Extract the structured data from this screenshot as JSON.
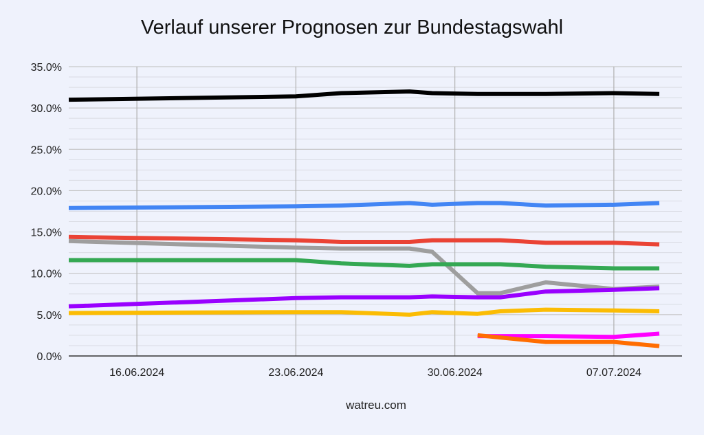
{
  "title": "Verlauf unserer Prognosen zur Bundestagswahl",
  "footer": "watreu.com",
  "chart_data": {
    "type": "line",
    "title": "Verlauf unserer Prognosen zur Bundestagswahl",
    "xlabel": "",
    "ylabel": "",
    "x_range": [
      "13.06.2024",
      "10.07.2024"
    ],
    "ylim": [
      0,
      35
    ],
    "y_ticks": [
      "0.0%",
      "5.0%",
      "10.0%",
      "15.0%",
      "20.0%",
      "25.0%",
      "30.0%",
      "35.0%"
    ],
    "x_ticks": [
      "16.06.2024",
      "23.06.2024",
      "30.06.2024",
      "07.07.2024"
    ],
    "legend": "none",
    "grid": true,
    "series": [
      {
        "name": "black",
        "color": "#000000",
        "points": [
          [
            "2024-06-13",
            31.0
          ],
          [
            "2024-06-23",
            31.4
          ],
          [
            "2024-06-25",
            31.8
          ],
          [
            "2024-06-28",
            32.0
          ],
          [
            "2024-06-29",
            31.8
          ],
          [
            "2024-07-01",
            31.7
          ],
          [
            "2024-07-04",
            31.7
          ],
          [
            "2024-07-07",
            31.8
          ],
          [
            "2024-07-09",
            31.7
          ]
        ]
      },
      {
        "name": "blue",
        "color": "#4285f4",
        "points": [
          [
            "2024-06-13",
            17.9
          ],
          [
            "2024-06-23",
            18.1
          ],
          [
            "2024-06-25",
            18.2
          ],
          [
            "2024-06-28",
            18.5
          ],
          [
            "2024-06-29",
            18.3
          ],
          [
            "2024-07-01",
            18.5
          ],
          [
            "2024-07-02",
            18.5
          ],
          [
            "2024-07-04",
            18.2
          ],
          [
            "2024-07-07",
            18.3
          ],
          [
            "2024-07-09",
            18.5
          ]
        ]
      },
      {
        "name": "red",
        "color": "#ea4335",
        "points": [
          [
            "2024-06-13",
            14.4
          ],
          [
            "2024-06-23",
            14.0
          ],
          [
            "2024-06-25",
            13.8
          ],
          [
            "2024-06-28",
            13.8
          ],
          [
            "2024-06-29",
            14.0
          ],
          [
            "2024-07-01",
            14.0
          ],
          [
            "2024-07-02",
            14.0
          ],
          [
            "2024-07-04",
            13.7
          ],
          [
            "2024-07-07",
            13.7
          ],
          [
            "2024-07-09",
            13.5
          ]
        ]
      },
      {
        "name": "grey",
        "color": "#9e9e9e",
        "points": [
          [
            "2024-06-13",
            13.9
          ],
          [
            "2024-06-23",
            13.1
          ],
          [
            "2024-06-25",
            13.0
          ],
          [
            "2024-06-28",
            13.0
          ],
          [
            "2024-06-29",
            12.6
          ],
          [
            "2024-07-01",
            7.6
          ],
          [
            "2024-07-02",
            7.6
          ],
          [
            "2024-07-04",
            8.9
          ],
          [
            "2024-07-07",
            8.1
          ],
          [
            "2024-07-09",
            8.4
          ]
        ]
      },
      {
        "name": "green",
        "color": "#34a853",
        "points": [
          [
            "2024-06-13",
            11.6
          ],
          [
            "2024-06-23",
            11.6
          ],
          [
            "2024-06-25",
            11.2
          ],
          [
            "2024-06-28",
            10.9
          ],
          [
            "2024-06-29",
            11.1
          ],
          [
            "2024-07-01",
            11.1
          ],
          [
            "2024-07-02",
            11.1
          ],
          [
            "2024-07-04",
            10.8
          ],
          [
            "2024-07-07",
            10.6
          ],
          [
            "2024-07-09",
            10.6
          ]
        ]
      },
      {
        "name": "purple",
        "color": "#9900ff",
        "points": [
          [
            "2024-06-13",
            6.0
          ],
          [
            "2024-06-23",
            7.0
          ],
          [
            "2024-06-25",
            7.1
          ],
          [
            "2024-06-28",
            7.1
          ],
          [
            "2024-06-29",
            7.2
          ],
          [
            "2024-07-01",
            7.1
          ],
          [
            "2024-07-02",
            7.1
          ],
          [
            "2024-07-04",
            7.8
          ],
          [
            "2024-07-07",
            8.0
          ],
          [
            "2024-07-09",
            8.2
          ]
        ]
      },
      {
        "name": "yellow",
        "color": "#fbbc04",
        "points": [
          [
            "2024-06-13",
            5.2
          ],
          [
            "2024-06-23",
            5.3
          ],
          [
            "2024-06-25",
            5.3
          ],
          [
            "2024-06-28",
            5.0
          ],
          [
            "2024-06-29",
            5.3
          ],
          [
            "2024-07-01",
            5.1
          ],
          [
            "2024-07-02",
            5.4
          ],
          [
            "2024-07-04",
            5.6
          ],
          [
            "2024-07-07",
            5.5
          ],
          [
            "2024-07-09",
            5.4
          ]
        ]
      },
      {
        "name": "magenta",
        "color": "#ff00ff",
        "points": [
          [
            "2024-07-01",
            2.4
          ],
          [
            "2024-07-04",
            2.4
          ],
          [
            "2024-07-07",
            2.3
          ],
          [
            "2024-07-09",
            2.7
          ]
        ]
      },
      {
        "name": "orange",
        "color": "#ff6d01",
        "points": [
          [
            "2024-07-01",
            2.5
          ],
          [
            "2024-07-04",
            1.7
          ],
          [
            "2024-07-07",
            1.7
          ],
          [
            "2024-07-09",
            1.2
          ]
        ]
      }
    ]
  }
}
